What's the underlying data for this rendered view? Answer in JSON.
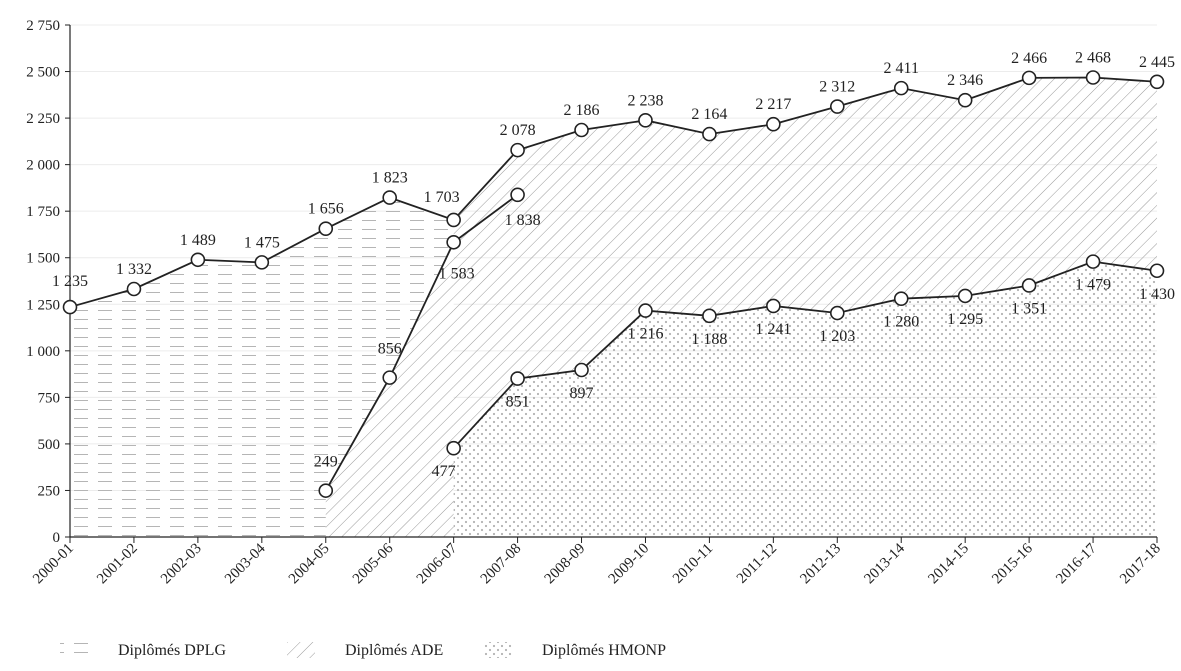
{
  "chart_data": {
    "type": "area",
    "categories": [
      "2000-01",
      "2001-02",
      "2002-03",
      "2003-04",
      "2004-05",
      "2005-06",
      "2006-07",
      "2007-08",
      "2008-09",
      "2009-10",
      "2010-11",
      "2011-12",
      "2012-13",
      "2013-14",
      "2014-15",
      "2015-16",
      "2016-17",
      "2017-18"
    ],
    "ylim": [
      0,
      2750
    ],
    "yticks": [
      0,
      250,
      500,
      750,
      1000,
      1250,
      1500,
      1750,
      2000,
      2250,
      2500,
      2750
    ],
    "ytick_labels": [
      "0",
      "250",
      "500",
      "750",
      "1 000",
      "1 250",
      "1 500",
      "1 750",
      "2 000",
      "2 250",
      "2 500",
      "2 750"
    ],
    "grid": "horizontal",
    "legend_position": "bottom-left",
    "lines": [
      {
        "id": "total",
        "values": [
          1235,
          1332,
          1489,
          1475,
          1656,
          1823,
          1703,
          2078,
          2186,
          2238,
          2164,
          2217,
          2312,
          2411,
          2346,
          2466,
          2468,
          2445
        ],
        "labels": [
          "1 235",
          "1 332",
          "1 489",
          "1 475",
          "1 656",
          "1 823",
          "1 703",
          "2 078",
          "2 186",
          "2 238",
          "2 164",
          "2 217",
          "2 312",
          "2 411",
          "2 346",
          "2 466",
          "2 468",
          "2 445"
        ]
      },
      {
        "id": "ade",
        "x_start": 4,
        "values": [
          249,
          856,
          1583,
          1838
        ],
        "labels": [
          "249",
          "856",
          "1 583",
          "1 838"
        ]
      },
      {
        "id": "hmonp",
        "x_start": 6,
        "values": [
          477,
          851,
          897,
          1216,
          1188,
          1241,
          1203,
          1280,
          1295,
          1351,
          1479,
          1430
        ],
        "labels": [
          "477",
          "851",
          "897",
          "1 216",
          "1 188",
          "1 241",
          "1 203",
          "1 280",
          "1 295",
          "1 351",
          "1 479",
          "1 430"
        ]
      }
    ],
    "areas": [
      {
        "name": "Diplômés DPLG",
        "pattern": "dashes",
        "x_range": [
          0,
          6
        ]
      },
      {
        "name": "Diplômés ADE",
        "pattern": "diagonal",
        "x_range": [
          4,
          17
        ]
      },
      {
        "name": "Diplômés HMONP",
        "pattern": "dots",
        "x_range": [
          6,
          17
        ]
      }
    ],
    "legend": [
      "Diplômés DPLG",
      "Diplômés ADE",
      "Diplômés HMONP"
    ]
  }
}
